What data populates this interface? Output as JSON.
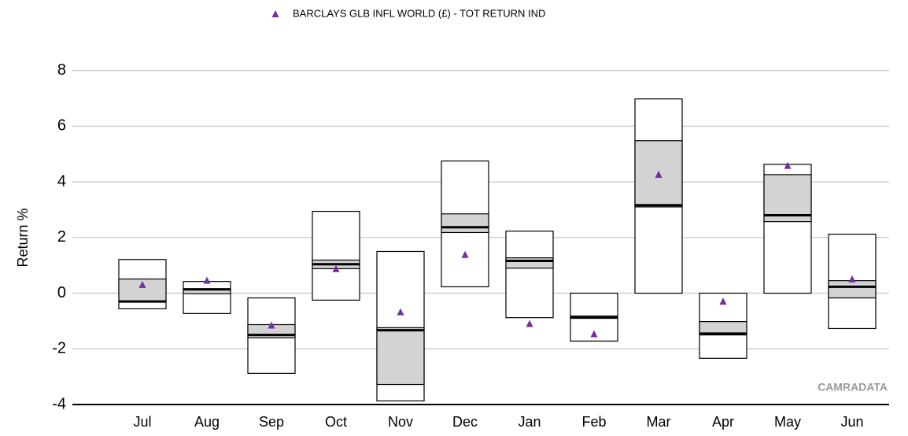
{
  "chart_data": {
    "type": "box",
    "categories": [
      "Jul",
      "Aug",
      "Sep",
      "Oct",
      "Nov",
      "Dec",
      "Jan",
      "Feb",
      "Mar",
      "Apr",
      "May",
      "Jun"
    ],
    "max": [
      1.21,
      0.42,
      -0.17,
      2.94,
      1.5,
      4.75,
      2.23,
      0,
      6.98,
      0,
      4.63,
      2.12
    ],
    "upper": [
      0.51,
      0.14,
      -1.13,
      1.19,
      -1.24,
      2.85,
      1.27,
      -0.82,
      5.48,
      -1.02,
      4.26,
      0.45
    ],
    "median": [
      -0.3,
      0.14,
      -1.5,
      1.04,
      -1.33,
      2.37,
      1.16,
      -0.88,
      3.16,
      -1.45,
      2.8,
      0.23
    ],
    "lower": [
      -0.28,
      -0.02,
      -1.6,
      0.88,
      -3.28,
      2.18,
      0.9,
      -0.9,
      3.1,
      -1.5,
      2.57,
      -0.17
    ],
    "min": [
      -0.56,
      -0.73,
      -2.88,
      -0.25,
      -3.87,
      0.23,
      -0.88,
      -1.72,
      0,
      -2.34,
      0,
      -1.27
    ],
    "benchmark": {
      "name": "BARCLAYS GLB INFL WORLD (£) - TOT RETURN IND",
      "color": "#7030a0",
      "values": [
        0.3,
        0.45,
        -1.16,
        0.87,
        -0.68,
        1.38,
        -1.1,
        -1.47,
        4.26,
        -0.3,
        4.58,
        0.5
      ]
    },
    "box_fill": "#d3d3d3",
    "y_label": "Return %",
    "watermark": "CAMRADATA",
    "ylim": [
      -4,
      8.5
    ],
    "yticks": [
      -4,
      -2,
      0,
      2,
      4,
      6,
      8
    ],
    "grid": true
  }
}
